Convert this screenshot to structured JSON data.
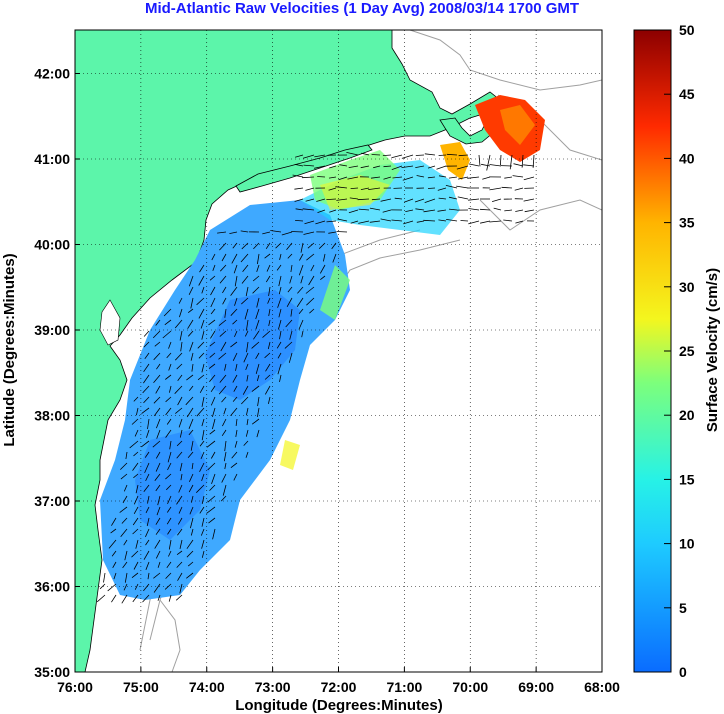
{
  "title": "Mid-Atlantic Raw Velocities (1 Day Avg) 2008/03/14 1700 GMT",
  "xlabel": "Longitude (Degrees:Minutes)",
  "ylabel": "Latitude (Degrees:Minutes)",
  "colorbar_label": "Surface Velocity (cm/s)",
  "x_ticks": [
    "76:00",
    "75:00",
    "74:00",
    "73:00",
    "72:00",
    "71:00",
    "70:00",
    "69:00",
    "68:00"
  ],
  "y_ticks": [
    "35:00",
    "36:00",
    "37:00",
    "38:00",
    "39:00",
    "40:00",
    "41:00",
    "42:00"
  ],
  "colorbar_ticks": [
    "0",
    "5",
    "10",
    "15",
    "20",
    "25",
    "30",
    "35",
    "40",
    "45",
    "50"
  ],
  "colors": {
    "land": "#5cf5aa",
    "title": "#1a1aff",
    "bathymetry": "#a0a0a0"
  }
}
